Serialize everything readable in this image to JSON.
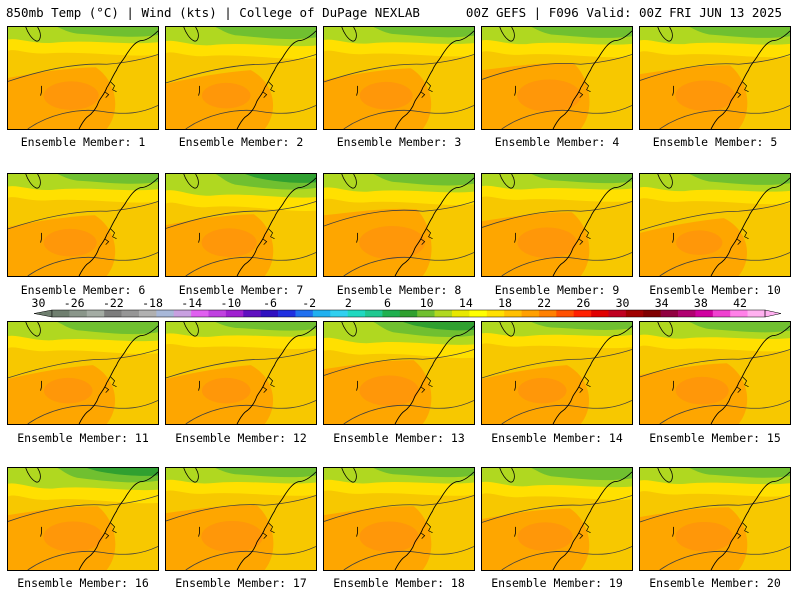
{
  "header": {
    "left": "850mb Temp (°C) | Wind (kts) | College of DuPage NEXLAB",
    "right": "00Z GEFS | F096 Valid: 00Z FRI JUN 13 2025"
  },
  "panel_caption_prefix": "Ensemble Member: ",
  "members": [
    {
      "id": "1",
      "label": "Ensemble Member: 1",
      "green": 0.35,
      "warm": 0.45
    },
    {
      "id": "2",
      "label": "Ensemble Member: 2",
      "green": 0.55,
      "warm": 0.3
    },
    {
      "id": "3",
      "label": "Ensemble Member: 3",
      "green": 0.4,
      "warm": 0.4
    },
    {
      "id": "4",
      "label": "Ensemble Member: 4",
      "green": 0.45,
      "warm": 0.65
    },
    {
      "id": "5",
      "label": "Ensemble Member: 5",
      "green": 0.45,
      "warm": 0.55
    },
    {
      "id": "6",
      "label": "Ensemble Member: 6",
      "green": 0.35,
      "warm": 0.4
    },
    {
      "id": "7",
      "label": "Ensemble Member: 7",
      "green": 0.85,
      "warm": 0.45
    },
    {
      "id": "8",
      "label": "Ensemble Member: 8",
      "green": 0.5,
      "warm": 0.7
    },
    {
      "id": "9",
      "label": "Ensemble Member: 9",
      "green": 0.3,
      "warm": 0.55
    },
    {
      "id": "10",
      "label": "Ensemble Member: 10",
      "green": 0.45,
      "warm": 0.25
    },
    {
      "id": "11",
      "label": "Ensemble Member: 11",
      "green": 0.55,
      "warm": 0.3
    },
    {
      "id": "12",
      "label": "Ensemble Member: 12",
      "green": 0.25,
      "warm": 0.3
    },
    {
      "id": "13",
      "label": "Ensemble Member: 13",
      "green": 0.8,
      "warm": 0.55
    },
    {
      "id": "14",
      "label": "Ensemble Member: 14",
      "green": 0.2,
      "warm": 0.3
    },
    {
      "id": "15",
      "label": "Ensemble Member: 15",
      "green": 0.4,
      "warm": 0.4
    },
    {
      "id": "16",
      "label": "Ensemble Member: 16",
      "green": 0.75,
      "warm": 0.55
    },
    {
      "id": "17",
      "label": "Ensemble Member: 17",
      "green": 0.3,
      "warm": 0.6
    },
    {
      "id": "18",
      "label": "Ensemble Member: 18",
      "green": 0.3,
      "warm": 0.55
    },
    {
      "id": "19",
      "label": "Ensemble Member: 19",
      "green": 0.55,
      "warm": 0.45
    },
    {
      "id": "20",
      "label": "Ensemble Member: 20",
      "green": 0.35,
      "warm": 0.5
    }
  ],
  "colorbar": {
    "tick_labels": [
      "-30",
      "-26",
      "-22",
      "-18",
      "-14",
      "-10",
      "-6",
      "-2",
      "2",
      "6",
      "10",
      "14",
      "18",
      "22",
      "26",
      "30",
      "34",
      "38",
      "42"
    ],
    "colors": [
      "#6f7f6f",
      "#8a968a",
      "#a4aca4",
      "#7d7d7d",
      "#969696",
      "#b0b0b0",
      "#a8b8d8",
      "#c8a0e0",
      "#e060f0",
      "#c040e0",
      "#a020d0",
      "#6010c0",
      "#3010c0",
      "#2030e0",
      "#2070f0",
      "#20b0f0",
      "#30d0f0",
      "#20d8c0",
      "#20c890",
      "#20b050",
      "#30a030",
      "#70c030",
      "#b0d820",
      "#e8e800",
      "#ffff00",
      "#ffe000",
      "#ffc000",
      "#ffa000",
      "#ff8000",
      "#ff5000",
      "#ff2000",
      "#e00000",
      "#c00020",
      "#a00000",
      "#800000",
      "#900040",
      "#b00070",
      "#d000a0",
      "#f040d0",
      "#ff80e8",
      "#ffb0f0"
    ]
  },
  "colors": {
    "background": "#ffffff",
    "cold_green": "#70c030",
    "dark_green": "#30a030",
    "light_green": "#b0d820",
    "yellow": "#ffe000",
    "gold": "#f7c800",
    "orange": "#ffa000",
    "dark_orange": "#ff8a10",
    "contour": "#404040",
    "coast": "#000000"
  }
}
